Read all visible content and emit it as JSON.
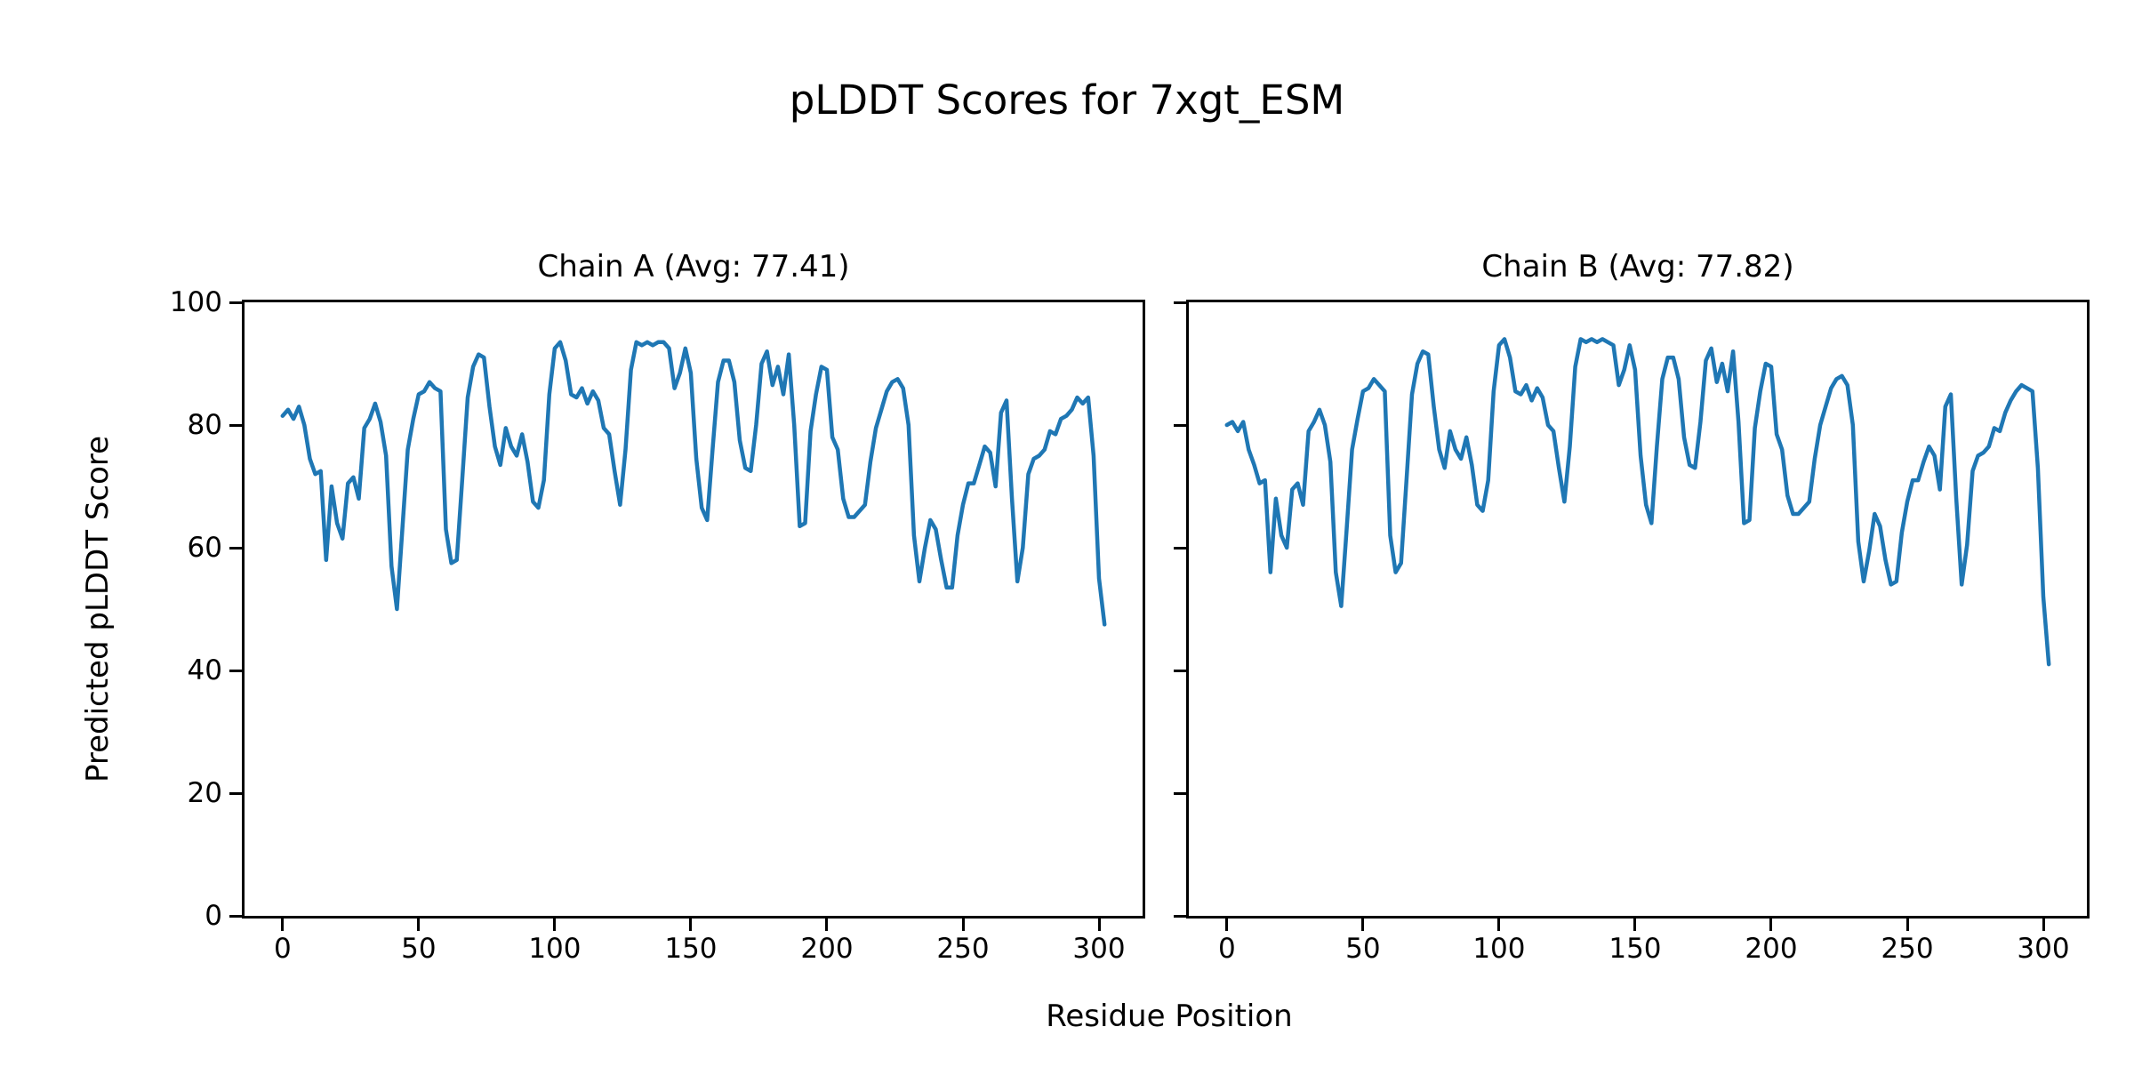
{
  "figure": {
    "suptitle": "pLDDT Scores for 7xgt_ESM",
    "xlabel": "Residue Position",
    "ylabel": "Predicted pLDDT Score",
    "background_color": "#ffffff",
    "text_color": "#000000",
    "spine_color": "#000000"
  },
  "chart_data": [
    {
      "type": "line",
      "title": "Chain A (Avg: 77.41)",
      "series_name": "Chain A pLDDT",
      "average": 77.41,
      "line_color": "#1f77b4",
      "xlim": [
        -14,
        316
      ],
      "ylim": [
        0,
        100
      ],
      "xticks": [
        0,
        50,
        100,
        150,
        200,
        250,
        300
      ],
      "yticks": [
        0,
        20,
        40,
        60,
        80,
        100
      ],
      "grid": false,
      "legend": "none",
      "x_start": 0,
      "x_step": 2,
      "values": [
        81.5,
        82.5,
        81,
        83,
        80,
        74.5,
        72,
        72.5,
        58,
        70,
        64,
        61.5,
        70.5,
        71.5,
        68,
        79.5,
        81,
        83.5,
        80.5,
        75,
        57,
        50,
        63,
        76,
        81,
        85,
        85.5,
        87,
        86,
        85.5,
        63,
        57.5,
        58,
        71,
        84.5,
        89.5,
        91.5,
        91,
        83,
        76.5,
        73.5,
        79.5,
        76.5,
        75,
        78.5,
        74,
        67.5,
        66.5,
        71,
        85,
        92.5,
        93.5,
        90.5,
        85,
        84.5,
        86,
        83.5,
        85.5,
        84,
        79.5,
        78.5,
        72.5,
        67,
        76,
        89,
        93.5,
        93,
        93.5,
        93,
        93.5,
        93.5,
        92.5,
        86,
        88.5,
        92.5,
        88.5,
        74.5,
        66.5,
        64.5,
        76,
        87,
        90.5,
        90.5,
        87,
        77.5,
        73,
        72.5,
        80,
        90,
        92,
        86.5,
        89.5,
        85,
        91.5,
        80,
        63.5,
        64,
        79,
        85,
        89.5,
        89,
        78,
        76,
        68,
        65,
        65,
        66,
        67,
        74,
        79.5,
        82.5,
        85.5,
        87,
        87.5,
        86,
        80,
        62,
        54.5,
        60,
        64.5,
        63,
        58,
        53.5,
        53.5,
        62,
        67,
        70.5,
        70.5,
        73.5,
        76.5,
        75.5,
        70,
        82,
        84,
        68,
        54.5,
        60,
        72,
        74.5,
        75,
        76,
        79,
        78.5,
        81,
        81.5,
        82.5,
        84.5,
        83.5,
        84.5,
        75,
        55,
        47.5
      ]
    },
    {
      "type": "line",
      "title": "Chain B (Avg: 77.82)",
      "series_name": "Chain B pLDDT",
      "average": 77.82,
      "line_color": "#1f77b4",
      "xlim": [
        -14,
        316
      ],
      "ylim": [
        0,
        100
      ],
      "xticks": [
        0,
        50,
        100,
        150,
        200,
        250,
        300
      ],
      "yticks": [
        0,
        20,
        40,
        60,
        80,
        100
      ],
      "grid": false,
      "legend": "none",
      "x_start": 0,
      "x_step": 2,
      "values": [
        80,
        80.5,
        79,
        80.5,
        76,
        73.5,
        70.5,
        71,
        56,
        68,
        62,
        60,
        69.5,
        70.5,
        67,
        79,
        80.5,
        82.5,
        80,
        74,
        56,
        50.5,
        63,
        76,
        81,
        85.5,
        86,
        87.5,
        86.5,
        85.5,
        62,
        56,
        57.5,
        71,
        85,
        90,
        92,
        91.5,
        83,
        76,
        73,
        79,
        76,
        74.5,
        78,
        73.5,
        67,
        66,
        71,
        85.5,
        93,
        94,
        91,
        85.5,
        85,
        86.5,
        84,
        86,
        84.5,
        80,
        79,
        73,
        67.5,
        76.5,
        89.5,
        94,
        93.5,
        94,
        93.5,
        94,
        93.5,
        93,
        86.5,
        89,
        93,
        89,
        75,
        67,
        64,
        76.5,
        87.5,
        91,
        91,
        87.5,
        78,
        73.5,
        73,
        80.5,
        90.5,
        92.5,
        87,
        90,
        85.5,
        92,
        80.5,
        64,
        64.5,
        79.5,
        85.5,
        90,
        89.5,
        78.5,
        76,
        68.5,
        65.5,
        65.5,
        66.5,
        67.5,
        74.5,
        80,
        83,
        86,
        87.5,
        88,
        86.5,
        80,
        61,
        54.5,
        59.5,
        65.5,
        63.5,
        58,
        54,
        54.5,
        62.5,
        67.5,
        71,
        71,
        74,
        76.5,
        75,
        69.5,
        83,
        85,
        68,
        54,
        60.5,
        72.5,
        75,
        75.5,
        76.5,
        79.5,
        79,
        82,
        84,
        85.5,
        86.5,
        86,
        85.5,
        73,
        52,
        41
      ]
    }
  ]
}
